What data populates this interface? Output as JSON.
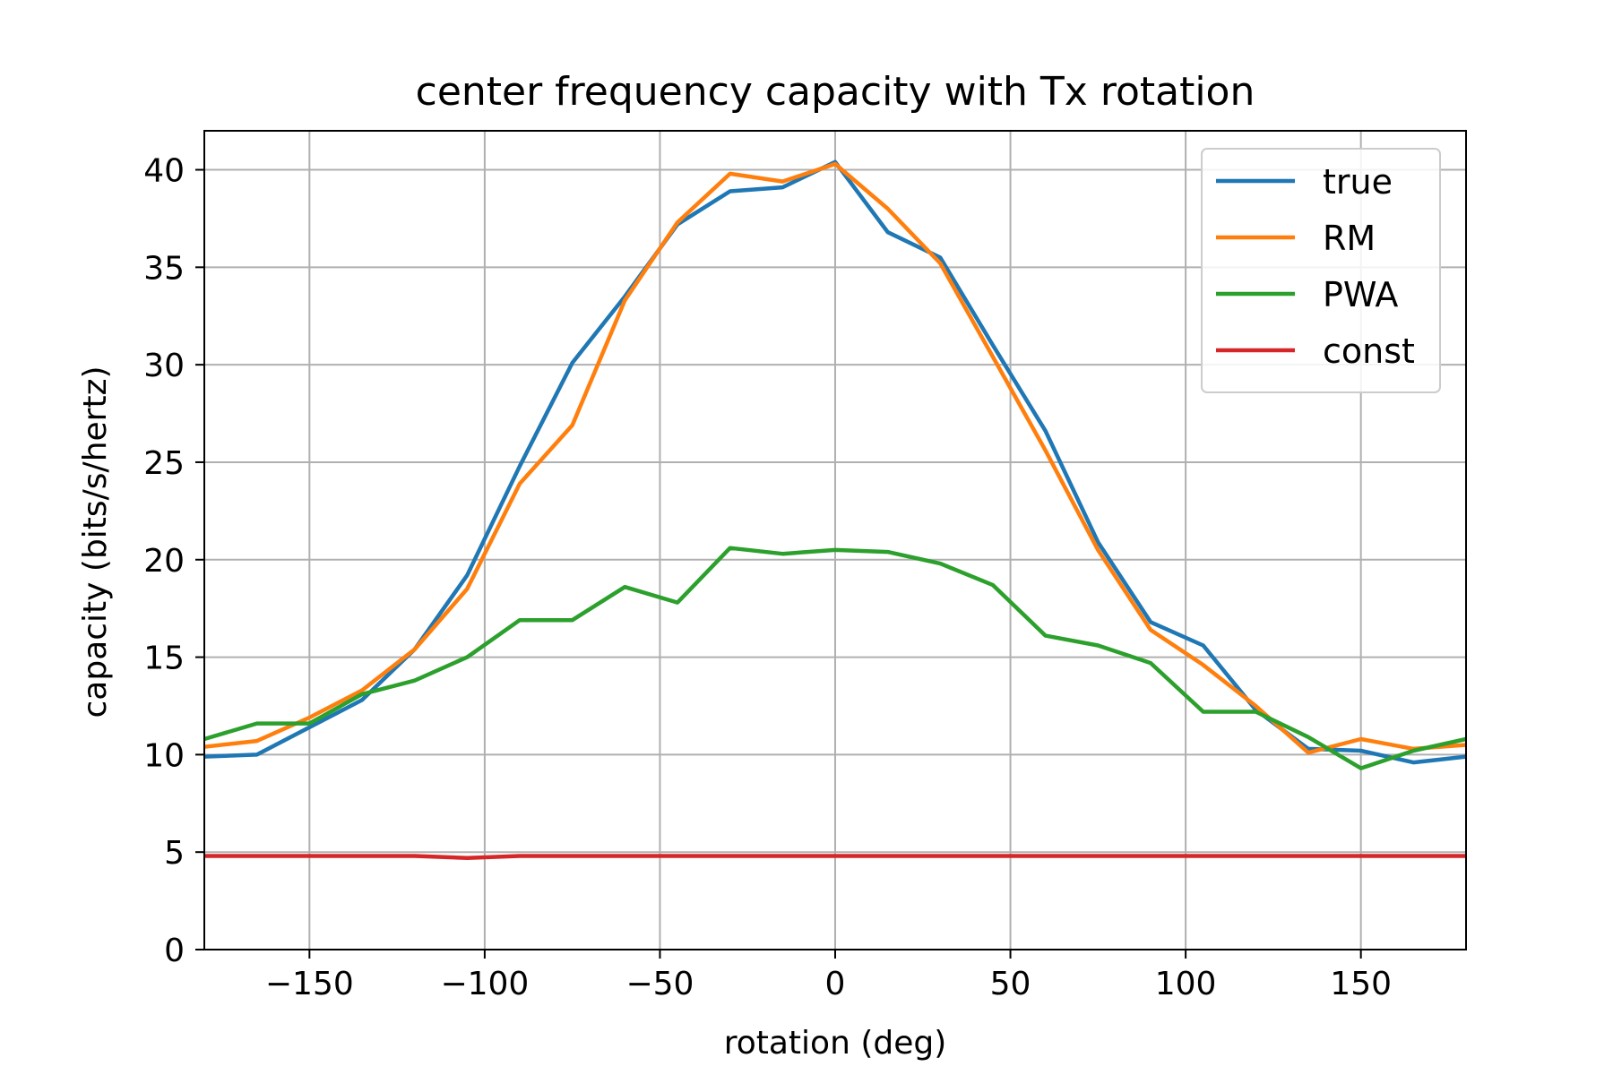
{
  "chart_data": {
    "type": "line",
    "title": "center frequency capacity with Tx rotation",
    "xlabel": "rotation (deg)",
    "ylabel": "capacity (bits/s/hertz)",
    "xlim": [
      -180,
      180
    ],
    "ylim": [
      0,
      42
    ],
    "xticks": [
      -150,
      -100,
      -50,
      0,
      50,
      100,
      150
    ],
    "xtick_labels": [
      "−150",
      "−100",
      "−50",
      "0",
      "50",
      "100",
      "150"
    ],
    "yticks": [
      0,
      5,
      10,
      15,
      20,
      25,
      30,
      35,
      40
    ],
    "ytick_labels": [
      "0",
      "5",
      "10",
      "15",
      "20",
      "25",
      "30",
      "35",
      "40"
    ],
    "grid": true,
    "legend_position": "top-right",
    "x": [
      -180,
      -165,
      -150,
      -135,
      -120,
      -105,
      -90,
      -75,
      -60,
      -45,
      -30,
      -15,
      0,
      15,
      30,
      45,
      60,
      75,
      90,
      105,
      120,
      135,
      150,
      165,
      180
    ],
    "series": [
      {
        "name": "true",
        "color": "#1f77b4",
        "values": [
          9.9,
          10.0,
          11.4,
          12.8,
          15.4,
          19.2,
          24.8,
          30.1,
          33.5,
          37.2,
          38.9,
          39.1,
          40.4,
          36.8,
          35.5,
          31.0,
          26.6,
          20.9,
          16.8,
          15.6,
          12.3,
          10.3,
          10.2,
          9.6,
          9.9
        ]
      },
      {
        "name": "RM",
        "color": "#ff7f0e",
        "values": [
          10.4,
          10.7,
          11.9,
          13.3,
          15.4,
          18.5,
          23.9,
          26.9,
          33.3,
          37.3,
          39.8,
          39.4,
          40.3,
          38.0,
          35.2,
          30.4,
          25.6,
          20.5,
          16.4,
          14.6,
          12.5,
          10.1,
          10.8,
          10.3,
          10.5
        ]
      },
      {
        "name": "PWA",
        "color": "#2ca02c",
        "values": [
          10.8,
          11.6,
          11.6,
          13.1,
          13.8,
          15.0,
          16.9,
          16.9,
          18.6,
          17.8,
          20.6,
          20.3,
          20.5,
          20.4,
          19.8,
          18.7,
          16.1,
          15.6,
          14.7,
          12.2,
          12.2,
          10.9,
          9.3,
          10.2,
          10.8
        ]
      },
      {
        "name": "const",
        "color": "#d62728",
        "values": [
          4.8,
          4.8,
          4.8,
          4.8,
          4.8,
          4.7,
          4.8,
          4.8,
          4.8,
          4.8,
          4.8,
          4.8,
          4.8,
          4.8,
          4.8,
          4.8,
          4.8,
          4.8,
          4.8,
          4.8,
          4.8,
          4.8,
          4.8,
          4.8,
          4.8
        ]
      }
    ]
  }
}
